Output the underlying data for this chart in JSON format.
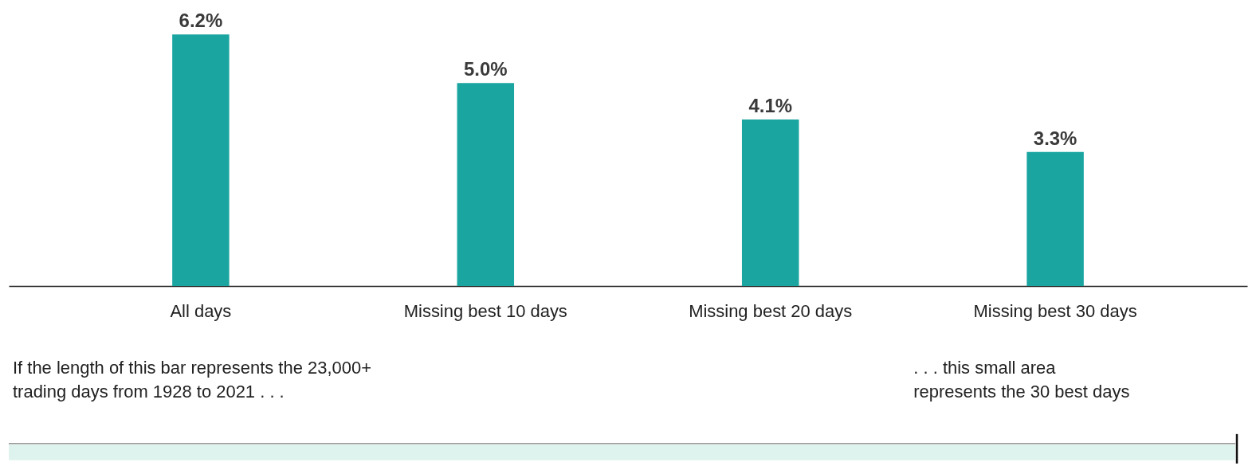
{
  "chart_data": {
    "type": "bar",
    "categories": [
      "All days",
      "Missing best 10 days",
      "Missing best 20 days",
      "Missing best 30 days"
    ],
    "values": [
      6.2,
      5.0,
      4.1,
      3.3
    ],
    "value_labels": [
      "6.2%",
      "5.0%",
      "4.1%",
      "3.3%"
    ],
    "color": "#1aa5a0",
    "grid": false,
    "annotations": [
      "If the length of this bar represents the 23,000+\ntrading days from 1928 to 2021 . . .",
      ". . . this small area\nrepresents the 30 best days"
    ]
  }
}
